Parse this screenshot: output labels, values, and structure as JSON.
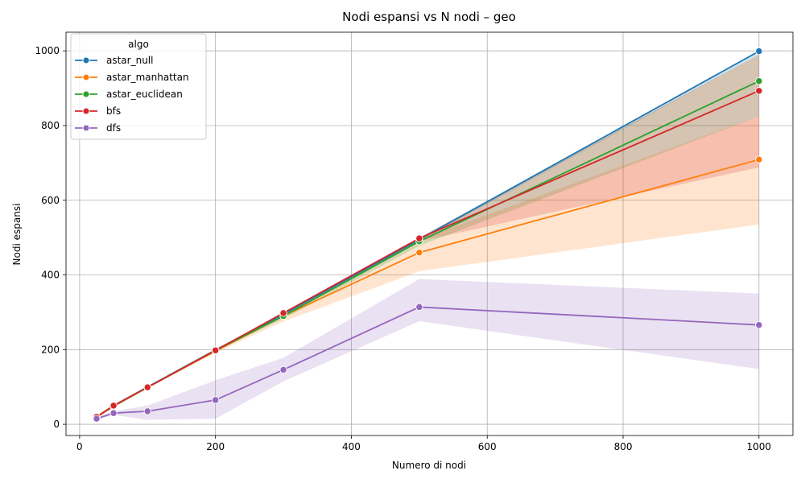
{
  "chart_data": {
    "type": "line",
    "title": "Nodi espansi vs N nodi – geo",
    "xlabel": "Numero di nodi",
    "ylabel": "Nodi espansi",
    "xlim": [
      -20,
      1050
    ],
    "ylim": [
      -30,
      1050
    ],
    "xticks": [
      0,
      200,
      400,
      600,
      800,
      1000
    ],
    "yticks": [
      0,
      200,
      400,
      600,
      800,
      1000
    ],
    "grid": true,
    "legend": {
      "title": "algo",
      "position": "top-left"
    },
    "x": [
      25,
      50,
      100,
      200,
      300,
      500,
      1000
    ],
    "series": [
      {
        "name": "astar_null",
        "color": "#1f77b4",
        "values": [
          20,
          50,
          100,
          199,
          295,
          495,
          999
        ],
        "ci_low": [
          19,
          49,
          99,
          198,
          290,
          490,
          990
        ],
        "ci_high": [
          21,
          51,
          101,
          200,
          299,
          499,
          1000
        ]
      },
      {
        "name": "astar_manhattan",
        "color": "#ff7f0e",
        "values": [
          19,
          48,
          99,
          196,
          290,
          460,
          709
        ],
        "ci_low": [
          17,
          45,
          97,
          192,
          275,
          410,
          535
        ],
        "ci_high": [
          21,
          50,
          100,
          199,
          298,
          495,
          825
        ]
      },
      {
        "name": "astar_euclidean",
        "color": "#2ca02c",
        "values": [
          20,
          49,
          99,
          198,
          290,
          490,
          919
        ],
        "ci_low": [
          18,
          47,
          98,
          196,
          282,
          478,
          825
        ],
        "ci_high": [
          21,
          50,
          100,
          199,
          298,
          499,
          990
        ]
      },
      {
        "name": "bfs",
        "color": "#d62728",
        "values": [
          20,
          50,
          99,
          198,
          298,
          498,
          893
        ],
        "ci_low": [
          19,
          49,
          98,
          197,
          294,
          490,
          688
        ],
        "ci_high": [
          21,
          51,
          100,
          199,
          299,
          500,
          990
        ]
      },
      {
        "name": "dfs",
        "color": "#9467bd",
        "values": [
          15,
          30,
          35,
          65,
          146,
          314,
          266
        ],
        "ci_low": [
          12,
          25,
          12,
          15,
          115,
          276,
          148
        ],
        "ci_high": [
          20,
          35,
          50,
          118,
          178,
          389,
          350
        ]
      }
    ]
  }
}
